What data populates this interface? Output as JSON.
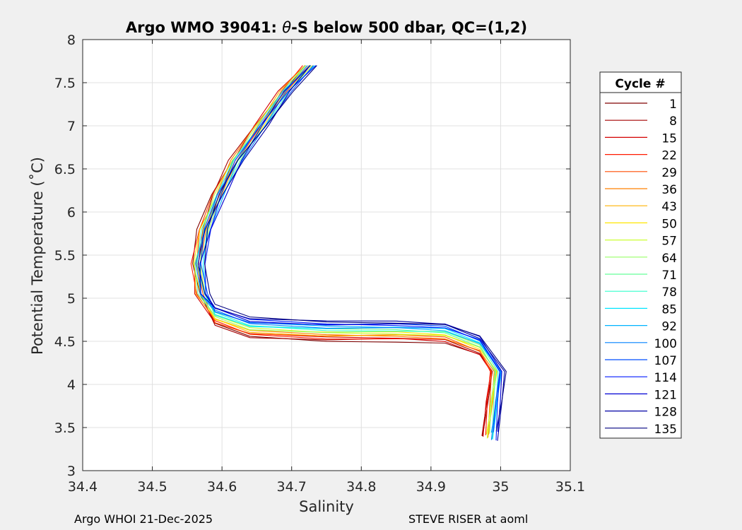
{
  "chart_data": {
    "type": "line",
    "title_prefix": "Argo WMO 39041: ",
    "title_theta": "θ",
    "title_suffix": "-S below 500 dbar,  QC=(1,2)",
    "xlabel": "Salinity",
    "ylabel": "Potential Temperature (˚C)",
    "xlim": [
      34.4,
      35.1
    ],
    "ylim": [
      3,
      8
    ],
    "grid": true,
    "x_ticks": [
      34.4,
      34.5,
      34.6,
      34.7,
      34.8,
      34.9,
      35,
      35.1
    ],
    "x_tick_labels": [
      "34.4",
      "34.5",
      "34.6",
      "34.7",
      "34.8",
      "34.9",
      "35",
      "35.1"
    ],
    "y_ticks": [
      3,
      3.5,
      4,
      4.5,
      5,
      5.5,
      6,
      6.5,
      7,
      7.5,
      8
    ],
    "y_tick_labels": [
      "3",
      "3.5",
      "4",
      "4.5",
      "5",
      "5.5",
      "6",
      "6.5",
      "7",
      "7.5",
      "8"
    ],
    "legend_title": "Cycle #",
    "legend_location": "outside right",
    "legend": [
      {
        "label": "1",
        "color": "#800000"
      },
      {
        "label": "8",
        "color": "#a50000"
      },
      {
        "label": "15",
        "color": "#d40000"
      },
      {
        "label": "22",
        "color": "#ff1a00"
      },
      {
        "label": "29",
        "color": "#ff4d00"
      },
      {
        "label": "36",
        "color": "#ff8000"
      },
      {
        "label": "43",
        "color": "#ffb300"
      },
      {
        "label": "50",
        "color": "#ffe600"
      },
      {
        "label": "57",
        "color": "#ccff33"
      },
      {
        "label": "64",
        "color": "#99ff66"
      },
      {
        "label": "71",
        "color": "#66ff99"
      },
      {
        "label": "78",
        "color": "#33ffcc"
      },
      {
        "label": "85",
        "color": "#00e6ff"
      },
      {
        "label": "92",
        "color": "#00b3ff"
      },
      {
        "label": "100",
        "color": "#0080ff"
      },
      {
        "label": "107",
        "color": "#004dff"
      },
      {
        "label": "114",
        "color": "#001aff"
      },
      {
        "label": "121",
        "color": "#0000d4"
      },
      {
        "label": "128",
        "color": "#0000a5"
      },
      {
        "label": "135",
        "color": "#000080"
      }
    ],
    "series_base": [
      {
        "x": 34.725,
        "y": 7.7
      },
      {
        "x": 34.69,
        "y": 7.4
      },
      {
        "x": 34.655,
        "y": 7.0
      },
      {
        "x": 34.62,
        "y": 6.6
      },
      {
        "x": 34.595,
        "y": 6.2
      },
      {
        "x": 34.575,
        "y": 5.8
      },
      {
        "x": 34.565,
        "y": 5.4
      },
      {
        "x": 34.57,
        "y": 5.05
      },
      {
        "x": 34.59,
        "y": 4.8
      },
      {
        "x": 34.64,
        "y": 4.66
      },
      {
        "x": 34.75,
        "y": 4.62
      },
      {
        "x": 34.85,
        "y": 4.62
      },
      {
        "x": 34.92,
        "y": 4.6
      },
      {
        "x": 34.97,
        "y": 4.45
      },
      {
        "x": 34.995,
        "y": 4.15
      },
      {
        "x": 34.99,
        "y": 3.8
      },
      {
        "x": 34.985,
        "y": 3.4
      }
    ]
  },
  "footer": {
    "left": "Argo WHOI 21-Dec-2025",
    "right": "STEVE RISER at aoml"
  }
}
